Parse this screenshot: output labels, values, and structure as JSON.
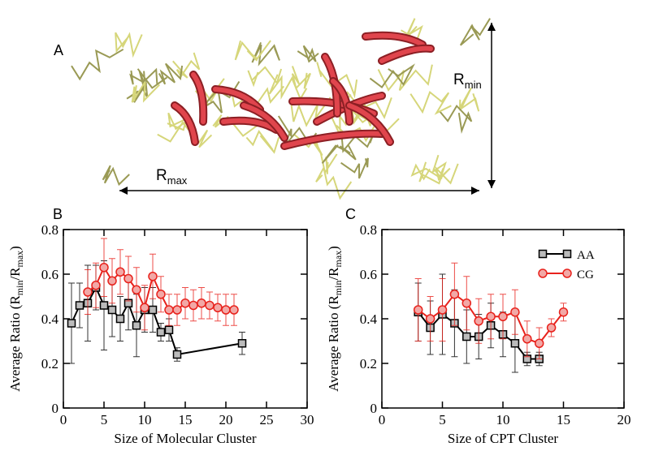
{
  "panel_a": {
    "label": "A",
    "r_max": {
      "base": "R",
      "sub": "max"
    },
    "r_min": {
      "base": "R",
      "sub": "min"
    }
  },
  "chart_data": [
    {
      "type": "line",
      "panel_label": "B",
      "x_label": "Size of Molecular Cluster",
      "y_label": [
        {
          "text": "Average Ratio (R"
        },
        {
          "text": "min",
          "sub": true
        },
        {
          "text": "/R"
        },
        {
          "text": "max",
          "sub": true
        },
        {
          "text": ")"
        }
      ],
      "xlim": [
        0,
        30
      ],
      "xticks": [
        0,
        5,
        10,
        15,
        20,
        25,
        30
      ],
      "ylim": [
        0,
        0.8
      ],
      "yticks": [
        0,
        0.2,
        0.4,
        0.6,
        0.8
      ],
      "series": [
        {
          "color": "#000000",
          "marker": "square",
          "x": [
            1,
            2,
            3,
            4,
            5,
            6,
            7,
            8,
            9,
            10,
            11,
            12,
            13,
            14,
            22
          ],
          "values": [
            0.38,
            0.46,
            0.47,
            0.54,
            0.46,
            0.44,
            0.4,
            0.47,
            0.37,
            0.44,
            0.44,
            0.34,
            0.35,
            0.24,
            0.29
          ],
          "errors": [
            0.18,
            0.1,
            0.17,
            0.1,
            0.2,
            0.12,
            0.1,
            0.12,
            0.14,
            0.1,
            0.1,
            0.04,
            0.05,
            0.03,
            0.05
          ]
        },
        {
          "color": "#e8221c",
          "marker": "circle",
          "x": [
            3,
            4,
            5,
            6,
            7,
            8,
            9,
            10,
            11,
            12,
            13,
            14,
            15,
            16,
            17,
            18,
            19,
            20,
            21
          ],
          "values": [
            0.52,
            0.55,
            0.63,
            0.57,
            0.61,
            0.58,
            0.53,
            0.45,
            0.59,
            0.51,
            0.44,
            0.44,
            0.47,
            0.46,
            0.47,
            0.46,
            0.45,
            0.44,
            0.44
          ],
          "errors": [
            0.1,
            0.1,
            0.13,
            0.1,
            0.1,
            0.1,
            0.1,
            0.1,
            0.1,
            0.08,
            0.07,
            0.07,
            0.07,
            0.07,
            0.07,
            0.06,
            0.06,
            0.07,
            0.07
          ]
        }
      ]
    },
    {
      "type": "line",
      "panel_label": "C",
      "x_label": "Size of CPT Cluster",
      "y_label": [
        {
          "text": "Average Ratio (R"
        },
        {
          "text": "min",
          "sub": true
        },
        {
          "text": "/R"
        },
        {
          "text": "max",
          "sub": true
        },
        {
          "text": ")"
        }
      ],
      "xlim": [
        0,
        20
      ],
      "xticks": [
        0,
        5,
        10,
        15,
        20
      ],
      "ylim": [
        0,
        0.8
      ],
      "yticks": [
        0,
        0.2,
        0.4,
        0.6,
        0.8
      ],
      "legend": "upper right",
      "series": [
        {
          "name": "AA",
          "color": "#000000",
          "marker": "square",
          "x": [
            3,
            4,
            5,
            6,
            7,
            8,
            9,
            10,
            11,
            12,
            13
          ],
          "values": [
            0.43,
            0.36,
            0.42,
            0.38,
            0.32,
            0.32,
            0.37,
            0.33,
            0.29,
            0.22,
            0.22
          ],
          "errors": [
            0.13,
            0.12,
            0.18,
            0.15,
            0.12,
            0.1,
            0.1,
            0.1,
            0.13,
            0.03,
            0.03
          ]
        },
        {
          "name": "CG",
          "color": "#e8221c",
          "marker": "circle",
          "x": [
            3,
            4,
            5,
            6,
            7,
            8,
            9,
            10,
            11,
            12,
            13,
            14,
            15
          ],
          "values": [
            0.44,
            0.4,
            0.44,
            0.51,
            0.47,
            0.39,
            0.41,
            0.41,
            0.43,
            0.31,
            0.29,
            0.36,
            0.43
          ],
          "errors": [
            0.14,
            0.1,
            0.14,
            0.14,
            0.12,
            0.1,
            0.1,
            0.1,
            0.1,
            0.08,
            0.07,
            0.04,
            0.04
          ]
        }
      ]
    }
  ]
}
